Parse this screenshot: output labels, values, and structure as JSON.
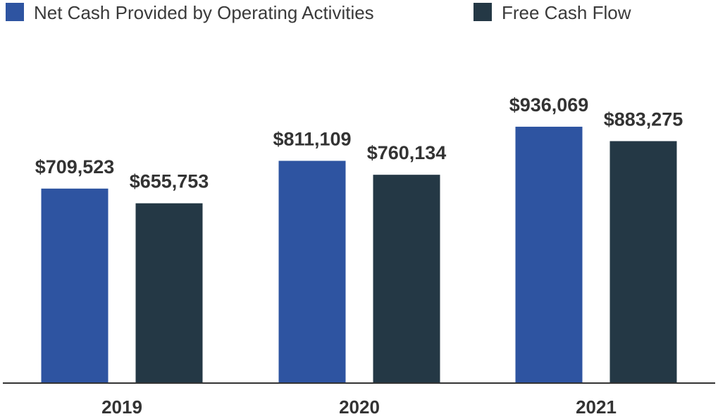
{
  "chart_data": {
    "type": "bar",
    "title": "",
    "xlabel": "",
    "ylabel": "",
    "categories": [
      "2019",
      "2020",
      "2021"
    ],
    "series": [
      {
        "name": "Net Cash Provided by Operating Activities",
        "color": "#2e54a1",
        "values": [
          709523,
          811109,
          936069
        ],
        "labels": [
          "$709,523",
          "$811,109",
          "$936,069"
        ]
      },
      {
        "name": "Free Cash Flow",
        "color": "#243845",
        "values": [
          655753,
          760134,
          883275
        ],
        "labels": [
          "$655,753",
          "$760,134",
          "$883,275"
        ]
      }
    ],
    "ylim": [
      0,
      1400000
    ],
    "grid": false,
    "legend_position": "top-left"
  }
}
